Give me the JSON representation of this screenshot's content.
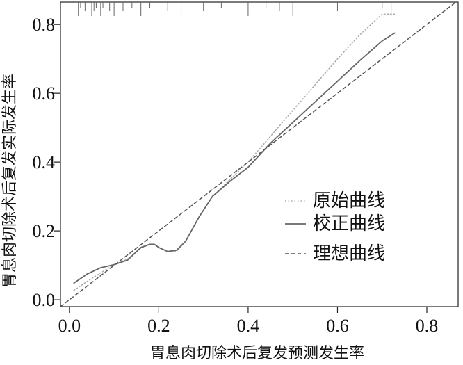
{
  "chart_data": {
    "type": "line",
    "title": "",
    "xlabel": "胃息肉切除术后复发预测发生率",
    "ylabel": "胃息肉切除术后复发实际发生率",
    "xlim": [
      -0.02,
      0.87
    ],
    "ylim": [
      -0.02,
      0.865
    ],
    "x_ticks": [
      0.0,
      0.2,
      0.4,
      0.6,
      0.8
    ],
    "y_ticks": [
      0.0,
      0.2,
      0.4,
      0.6,
      0.8
    ],
    "x_tick_labels": [
      "0.0",
      "0.2",
      "0.4",
      "0.6",
      "0.8"
    ],
    "y_tick_labels": [
      "0.0",
      "0.2",
      "0.4",
      "0.6",
      "0.8"
    ],
    "grid": false,
    "legend_position": "right",
    "series": [
      {
        "name": "原始曲线",
        "style": "dotted",
        "color": "#aaaaaa",
        "x": [
          0.01,
          0.05,
          0.1,
          0.13,
          0.16,
          0.18,
          0.19,
          0.2,
          0.22,
          0.24,
          0.26,
          0.29,
          0.32,
          0.36,
          0.4,
          0.45,
          0.5,
          0.55,
          0.6,
          0.65,
          0.7,
          0.728
        ],
        "y": [
          0.027,
          0.062,
          0.102,
          0.118,
          0.15,
          0.161,
          0.161,
          0.152,
          0.14,
          0.141,
          0.17,
          0.24,
          0.3,
          0.35,
          0.4,
          0.475,
          0.55,
          0.625,
          0.7,
          0.77,
          0.83,
          0.83
        ]
      },
      {
        "name": "校正曲线",
        "style": "solid",
        "color": "#666666",
        "x": [
          0.01,
          0.04,
          0.07,
          0.1,
          0.13,
          0.16,
          0.18,
          0.19,
          0.2,
          0.22,
          0.24,
          0.26,
          0.29,
          0.32,
          0.36,
          0.4,
          0.45,
          0.5,
          0.55,
          0.6,
          0.65,
          0.7,
          0.728
        ],
        "y": [
          0.048,
          0.075,
          0.093,
          0.102,
          0.115,
          0.152,
          0.161,
          0.161,
          0.152,
          0.14,
          0.144,
          0.17,
          0.24,
          0.3,
          0.345,
          0.385,
          0.455,
          0.515,
          0.575,
          0.635,
          0.695,
          0.752,
          0.775
        ]
      },
      {
        "name": "理想曲线",
        "style": "dashed",
        "color": "#555555",
        "x": [
          -0.02,
          0.87
        ],
        "y": [
          -0.02,
          0.87
        ]
      }
    ],
    "rug_top": [
      0.02,
      0.025,
      0.035,
      0.05,
      0.055,
      0.06,
      0.07,
      0.075,
      0.09,
      0.1,
      0.12,
      0.14,
      0.16,
      0.18,
      0.22,
      0.25,
      0.3,
      0.34,
      0.4,
      0.44,
      0.47,
      0.5,
      0.6,
      0.7,
      0.72
    ]
  }
}
